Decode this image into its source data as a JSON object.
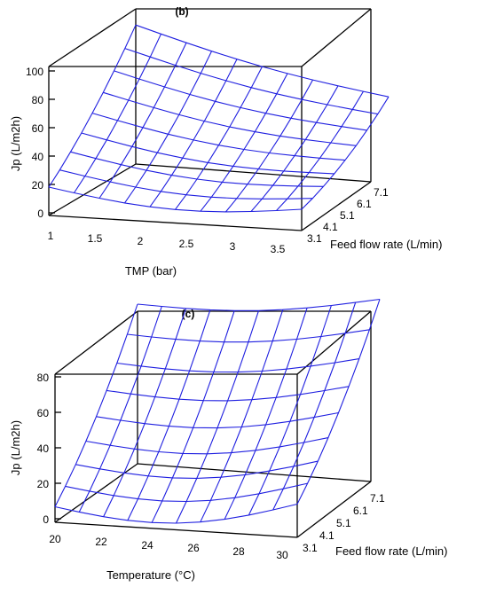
{
  "chart_data": [
    {
      "type": "surface",
      "panel_label": "(b)",
      "xlabel": "TMP (bar)",
      "ylabel": "Feed flow rate (L/min)",
      "zlabel": "Jp (L/m2h)",
      "x_ticks": [
        "1",
        "1.5",
        "2",
        "2.5",
        "3",
        "3.5"
      ],
      "y_ticks": [
        "3.1",
        "4.1",
        "5.1",
        "6.1",
        "7.1"
      ],
      "z_ticks": [
        "0",
        "20",
        "40",
        "60",
        "80",
        "100"
      ],
      "xlim": [
        1,
        3.5
      ],
      "ylim": [
        3.1,
        7.1
      ],
      "zlim": [
        0,
        100
      ],
      "grid_x": [
        1,
        1.25,
        1.5,
        1.75,
        2,
        2.25,
        2.5,
        2.75,
        3,
        3.25,
        3.5
      ],
      "grid_y": [
        3.1,
        3.6,
        4.1,
        4.6,
        5.1,
        5.6,
        6.1,
        6.6,
        7.1
      ],
      "corner_values": {
        "x1_y3.1": 20,
        "x3.5_y3.1": 15,
        "x1_y7.1": 98,
        "x3.5_y7.1": 58
      }
    },
    {
      "type": "surface",
      "panel_label": "(c)",
      "xlabel": "Temperature (°C)",
      "ylabel": "Feed flow rate (L/min)",
      "zlabel": "Jp (L/m2h)",
      "x_ticks": [
        "20",
        "22",
        "24",
        "26",
        "28",
        "30"
      ],
      "y_ticks": [
        "3.1",
        "4.1",
        "5.1",
        "6.1",
        "7.1"
      ],
      "z_ticks": [
        "0",
        "20",
        "40",
        "60",
        "80"
      ],
      "xlim": [
        20,
        30
      ],
      "ylim": [
        3.1,
        7.1
      ],
      "zlim": [
        0,
        80
      ],
      "grid_x": [
        20,
        21,
        22,
        23,
        24,
        25,
        26,
        27,
        28,
        29,
        30
      ],
      "grid_y": [
        3.1,
        3.6,
        4.1,
        4.6,
        5.1,
        5.6,
        6.1,
        6.6,
        7.1
      ],
      "corner_values": {
        "x20_y3.1": 7,
        "x30_y3.1": 15,
        "x20_y7.1": 72,
        "x30_y7.1": 81
      }
    }
  ]
}
